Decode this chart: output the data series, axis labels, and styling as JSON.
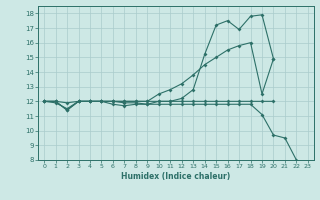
{
  "xlabel": "Humidex (Indice chaleur)",
  "xlim": [
    -0.5,
    23.5
  ],
  "ylim": [
    8,
    18.5
  ],
  "yticks": [
    8,
    9,
    10,
    11,
    12,
    13,
    14,
    15,
    16,
    17,
    18
  ],
  "xticks": [
    0,
    1,
    2,
    3,
    4,
    5,
    6,
    7,
    8,
    9,
    10,
    11,
    12,
    13,
    14,
    15,
    16,
    17,
    18,
    19,
    20,
    21,
    22,
    23
  ],
  "bg_color": "#cde8e5",
  "grid_color": "#aacccc",
  "line_color": "#2d7068",
  "lines": [
    {
      "x": [
        0,
        1,
        2,
        3,
        4,
        5,
        6,
        7,
        8,
        9,
        10,
        11,
        12,
        13,
        14,
        15,
        16,
        17,
        18,
        19,
        20
      ],
      "y": [
        12,
        12,
        11.4,
        12,
        12,
        12,
        12,
        12,
        12,
        12,
        12,
        12,
        12.2,
        12.8,
        15.2,
        17.2,
        17.5,
        16.9,
        17.8,
        17.9,
        14.9
      ]
    },
    {
      "x": [
        0,
        1,
        2,
        3,
        4,
        5,
        6,
        7,
        8,
        9,
        10,
        11,
        12,
        13,
        14,
        15,
        16,
        17,
        18,
        19,
        20
      ],
      "y": [
        12,
        12,
        11.4,
        12,
        12,
        12,
        12,
        12,
        12,
        12,
        12.5,
        12.8,
        13.2,
        13.8,
        14.5,
        15.0,
        15.5,
        15.8,
        16.0,
        12.5,
        14.9
      ]
    },
    {
      "x": [
        0,
        1,
        2,
        3,
        4,
        5,
        6,
        7,
        8,
        9,
        10,
        11,
        12,
        13,
        14,
        15,
        16,
        17,
        18,
        19,
        20,
        21,
        22
      ],
      "y": [
        12,
        12,
        11.9,
        12,
        12,
        12,
        11.8,
        11.7,
        11.8,
        11.8,
        11.8,
        11.8,
        11.8,
        11.8,
        11.8,
        11.8,
        11.8,
        11.8,
        11.8,
        11.1,
        9.7,
        9.5,
        8.0
      ]
    },
    {
      "x": [
        0,
        1,
        2,
        3,
        4,
        5,
        6,
        7,
        8,
        9,
        10,
        11,
        12,
        13,
        14,
        15,
        16,
        17,
        18,
        19,
        20
      ],
      "y": [
        12,
        11.9,
        11.5,
        12,
        12,
        12,
        12,
        11.9,
        11.9,
        11.8,
        12,
        12,
        12,
        12,
        12,
        12,
        12,
        12,
        12,
        12,
        12
      ]
    }
  ]
}
